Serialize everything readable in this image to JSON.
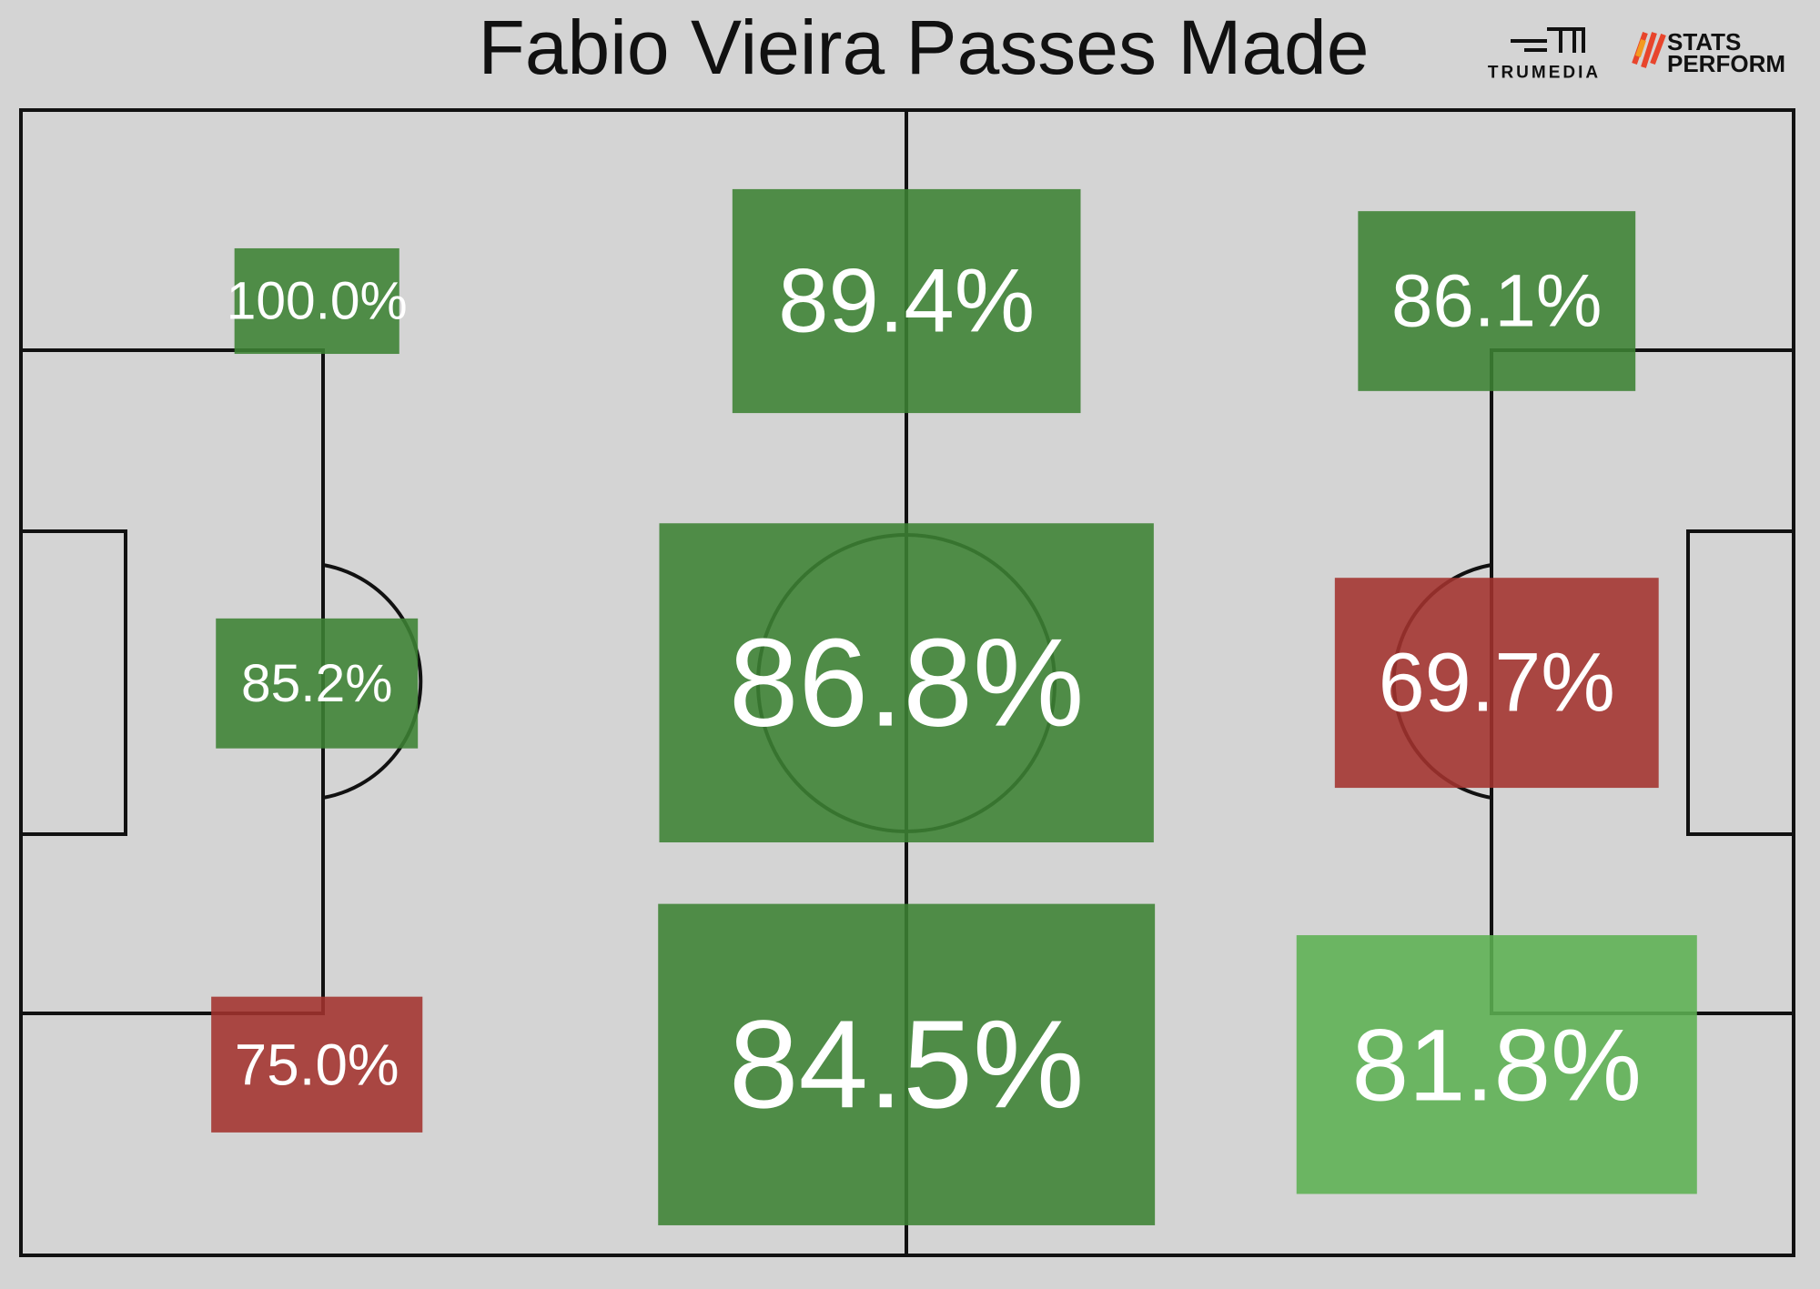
{
  "chart_data": {
    "type": "pitch-zones",
    "title": "Fabio Vieira Passes Made",
    "branding": {
      "left": "TRUMEDIA",
      "right": [
        "STATS",
        "PERFORM"
      ]
    },
    "values": [
      100.0,
      89.4,
      86.1,
      85.2,
      86.8,
      69.7,
      75.0,
      84.5,
      81.8
    ],
    "value_labels": [
      "100.0%",
      "89.4%",
      "86.1%",
      "85.2%",
      "86.8%",
      "69.7%",
      "75.0%",
      "84.5%",
      "81.8%"
    ],
    "colors": [
      "#3c8233",
      "#3c8233",
      "#3c8233",
      "#3c8233",
      "#3c8233",
      "#a3322d",
      "#a3322d",
      "#3c8233",
      "#5cb052"
    ]
  }
}
